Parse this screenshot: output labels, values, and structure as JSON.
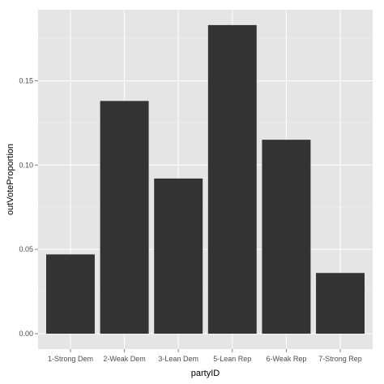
{
  "chart_data": {
    "type": "bar",
    "categories": [
      "1-Strong Dem",
      "2-Weak Dem",
      "3-Lean Dem",
      "5-Lean Rep",
      "6-Weak Rep",
      "7-Strong Rep"
    ],
    "values": [
      0.047,
      0.138,
      0.092,
      0.183,
      0.115,
      0.036
    ],
    "xlabel": "partyID",
    "ylabel": "outVoteProportion",
    "ylim": [
      -0.00915,
      0.1921
    ],
    "yticks": [
      0.0,
      0.05,
      0.1,
      0.15
    ],
    "ytick_labels": [
      "0.00",
      "0.05",
      "0.10",
      "0.15"
    ],
    "grid": true,
    "colors": {
      "bar": "#333333",
      "panel": "#e5e5e5",
      "grid_major": "#ffffff",
      "grid_minor": "#f2f2f2",
      "tick_label": "#4d4d4d"
    }
  }
}
